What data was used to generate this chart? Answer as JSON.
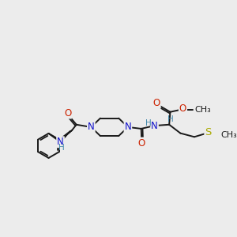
{
  "background_color": "#ececec",
  "bond_color": "#1a1a1a",
  "N_color": "#1111cc",
  "O_color": "#cc2200",
  "S_color": "#aaaa00",
  "H_color": "#4488aa",
  "bond_width": 1.4,
  "font_size_atom": 8.5,
  "font_size_H": 7.5,
  "figsize": [
    3.0,
    3.0
  ],
  "dpi": 100,
  "xlim": [
    0,
    10
  ],
  "ylim": [
    0,
    10
  ]
}
